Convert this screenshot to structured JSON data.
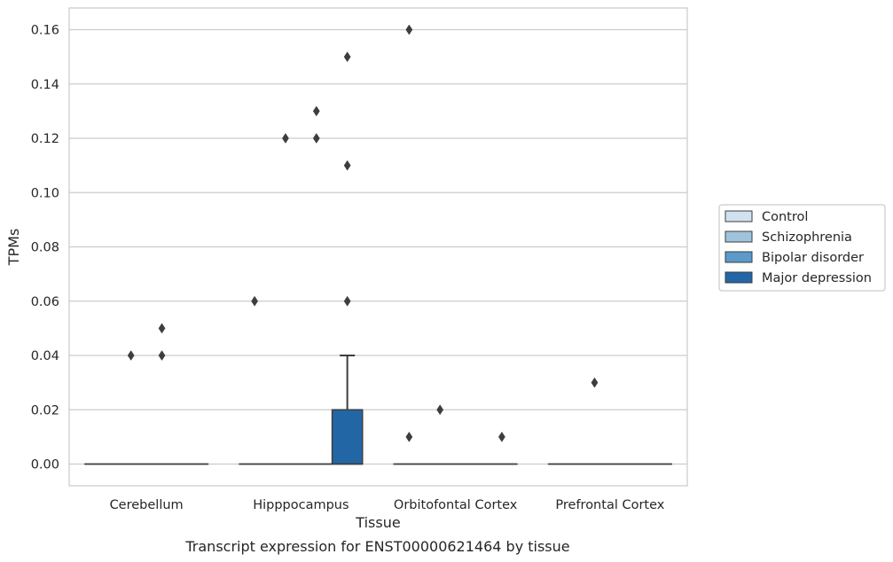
{
  "caption": "Transcript expression for ENST00000621464 by tissue",
  "chart_data": {
    "type": "box",
    "xlabel": "Tissue",
    "ylabel": "TPMs",
    "ylim": [
      -0.008,
      0.168
    ],
    "yticks": [
      0.0,
      0.02,
      0.04,
      0.06,
      0.08,
      0.1,
      0.12,
      0.14,
      0.16
    ],
    "ytick_labels": [
      "0.00",
      "0.02",
      "0.04",
      "0.06",
      "0.08",
      "0.10",
      "0.12",
      "0.14",
      "0.16"
    ],
    "grid": true,
    "legend_placement": "right",
    "categories": [
      "Cerebellum",
      "Hipppocampus",
      "Orbitofontal Cortex",
      "Prefrontal Cortex"
    ],
    "series": [
      {
        "name": "Control",
        "color": "#d1e1f0",
        "boxes": [
          {
            "q1": 0,
            "median": 0,
            "q3": 0,
            "whisker_low": 0,
            "whisker_high": 0,
            "outliers": []
          },
          {
            "q1": 0,
            "median": 0,
            "q3": 0,
            "whisker_low": 0,
            "whisker_high": 0,
            "outliers": [
              0.06
            ]
          },
          {
            "q1": 0,
            "median": 0,
            "q3": 0,
            "whisker_low": 0,
            "whisker_high": 0,
            "outliers": [
              0.16,
              0.01
            ]
          },
          {
            "q1": 0,
            "median": 0,
            "q3": 0,
            "whisker_low": 0,
            "whisker_high": 0,
            "outliers": []
          }
        ]
      },
      {
        "name": "Schizophrenia",
        "color": "#9ec4dd",
        "boxes": [
          {
            "q1": 0,
            "median": 0,
            "q3": 0,
            "whisker_low": 0,
            "whisker_high": 0,
            "outliers": [
              0.04
            ]
          },
          {
            "q1": 0,
            "median": 0,
            "q3": 0,
            "whisker_low": 0,
            "whisker_high": 0,
            "outliers": [
              0.12
            ]
          },
          {
            "q1": 0,
            "median": 0,
            "q3": 0,
            "whisker_low": 0,
            "whisker_high": 0,
            "outliers": [
              0.02
            ]
          },
          {
            "q1": 0,
            "median": 0,
            "q3": 0,
            "whisker_low": 0,
            "whisker_high": 0,
            "outliers": [
              0.03
            ]
          }
        ]
      },
      {
        "name": "Bipolar disorder",
        "color": "#5b9ac9",
        "boxes": [
          {
            "q1": 0,
            "median": 0,
            "q3": 0,
            "whisker_low": 0,
            "whisker_high": 0,
            "outliers": [
              0.05,
              0.04
            ]
          },
          {
            "q1": 0,
            "median": 0,
            "q3": 0,
            "whisker_low": 0,
            "whisker_high": 0,
            "outliers": [
              0.13,
              0.12
            ]
          },
          {
            "q1": 0,
            "median": 0,
            "q3": 0,
            "whisker_low": 0,
            "whisker_high": 0,
            "outliers": []
          },
          {
            "q1": 0,
            "median": 0,
            "q3": 0,
            "whisker_low": 0,
            "whisker_high": 0,
            "outliers": []
          }
        ]
      },
      {
        "name": "Major depression",
        "color": "#2366a6",
        "boxes": [
          {
            "q1": 0,
            "median": 0,
            "q3": 0,
            "whisker_low": 0,
            "whisker_high": 0,
            "outliers": []
          },
          {
            "q1": 0,
            "median": 0,
            "q3": 0.02,
            "whisker_low": 0,
            "whisker_high": 0.04,
            "outliers": [
              0.15,
              0.11,
              0.06
            ]
          },
          {
            "q1": 0,
            "median": 0,
            "q3": 0,
            "whisker_low": 0,
            "whisker_high": 0,
            "outliers": [
              0.01
            ]
          },
          {
            "q1": 0,
            "median": 0,
            "q3": 0,
            "whisker_low": 0,
            "whisker_high": 0,
            "outliers": []
          }
        ]
      }
    ]
  }
}
